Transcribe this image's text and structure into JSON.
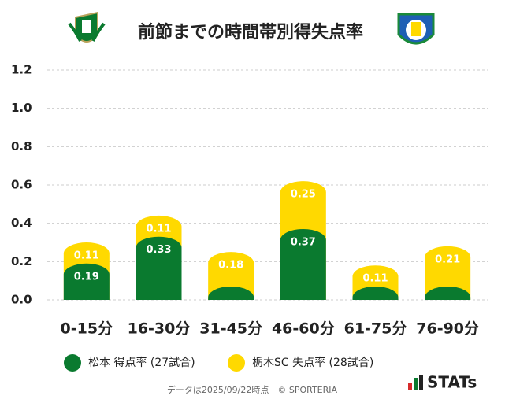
{
  "chart_data": {
    "type": "stacked-bar",
    "title": "前節までの時間帯別得失点率",
    "categories": [
      "0-15分",
      "16-30分",
      "31-45分",
      "46-60分",
      "61-75分",
      "76-90分"
    ],
    "series": [
      {
        "name": "松本 得点率 (27試合)",
        "color": "#0a7a2f",
        "values": [
          0.19,
          0.33,
          0.07,
          0.37,
          0.07,
          0.07
        ],
        "value_labels": [
          "0.19",
          "0.33",
          null,
          "0.37",
          null,
          null
        ]
      },
      {
        "name": "栃木SC 失点率 (28試合)",
        "color": "#ffd900",
        "values": [
          0.11,
          0.11,
          0.18,
          0.25,
          0.11,
          0.21
        ]
      }
    ],
    "ylim": [
      0,
      1.2
    ],
    "yticks": [
      {
        "value": 0,
        "label": "0.0"
      },
      0.2,
      0.4,
      0.6,
      0.8,
      {
        "value": 1,
        "label": "1.0"
      },
      1.2
    ],
    "grid": true,
    "footer": "データは2025/09/22時点　© SPORTERIA",
    "brand": "STATs"
  }
}
